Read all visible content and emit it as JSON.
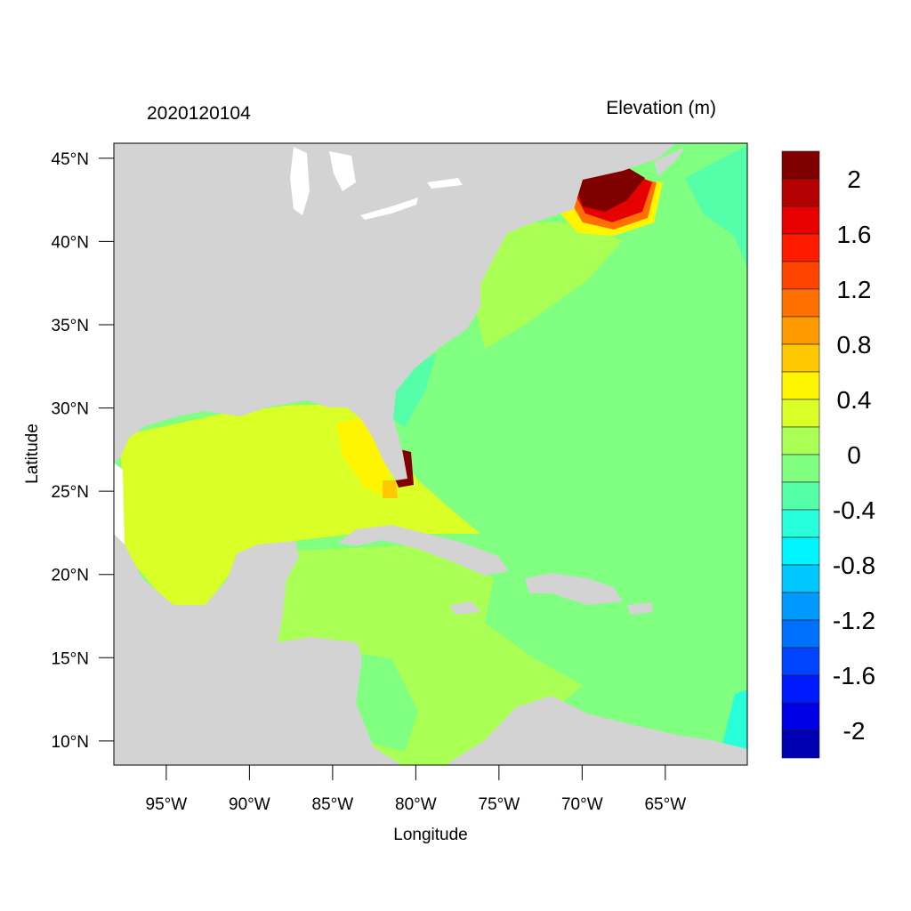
{
  "header": {
    "left_title": "2020120104",
    "right_title": "Elevation (m)"
  },
  "axes": {
    "xlabel": "Longitude",
    "ylabel": "Latitude",
    "xlim": [
      -98.15,
      -60.07
    ],
    "ylim": [
      8.55,
      45.9
    ],
    "x_ticks": [
      {
        "value": -95,
        "label": "95°W"
      },
      {
        "value": -90,
        "label": "90°W"
      },
      {
        "value": -85,
        "label": "85°W"
      },
      {
        "value": -80,
        "label": "80°W"
      },
      {
        "value": -75,
        "label": "75°W"
      },
      {
        "value": -70,
        "label": "70°W"
      },
      {
        "value": -65,
        "label": "65°W"
      }
    ],
    "y_ticks": [
      {
        "value": 45,
        "label": "45°N"
      },
      {
        "value": 40,
        "label": "40°N"
      },
      {
        "value": 35,
        "label": "35°N"
      },
      {
        "value": 30,
        "label": "30°N"
      },
      {
        "value": 25,
        "label": "25°N"
      },
      {
        "value": 20,
        "label": "20°N"
      },
      {
        "value": 15,
        "label": "15°N"
      },
      {
        "value": 10,
        "label": "10°N"
      }
    ]
  },
  "colors": {
    "land": "#d3d3d3",
    "nodata": "#ffffff"
  },
  "colorbar": {
    "levels_top_to_bottom": [
      "#800000",
      "#b30000",
      "#e60000",
      "#ff1a00",
      "#ff4400",
      "#ff7000",
      "#ff9a00",
      "#ffc800",
      "#fff500",
      "#d9ff26",
      "#aaff55",
      "#80ff80",
      "#55ffaa",
      "#26ffd9",
      "#00f5ff",
      "#00c8ff",
      "#009aff",
      "#0070ff",
      "#0044ff",
      "#001aff",
      "#0000e6",
      "#0000b3"
    ],
    "range": [
      -2.2,
      2.2
    ],
    "step": 0.2,
    "labels": [
      "2",
      "1.6",
      "1.2",
      "0.8",
      "0.4",
      "0",
      "-0.4",
      "-0.8",
      "-1.2",
      "-1.6",
      "-2"
    ]
  }
}
